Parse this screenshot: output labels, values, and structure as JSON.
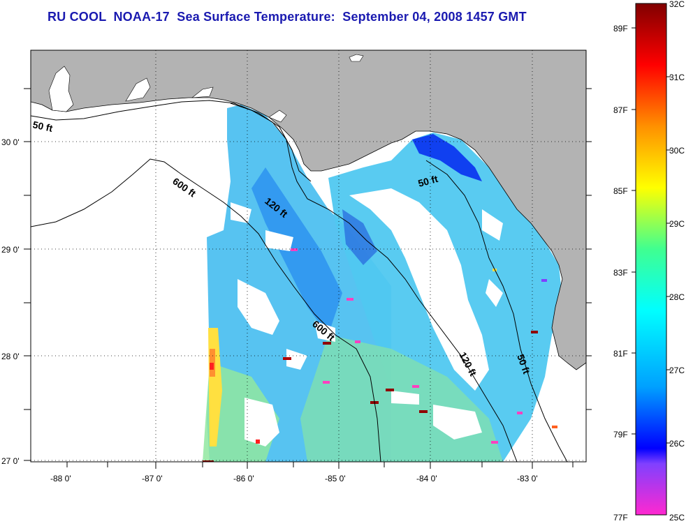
{
  "title": "RU COOL  NOAA-17  Sea Surface Temperature:  September 04, 2008 1457 GMT",
  "map": {
    "lon_range": [
      -88.3,
      -82.4
    ],
    "lat_range": [
      26.95,
      30.85
    ],
    "lon_ticks": [
      "-88 0'",
      "-87 0'",
      "-86 0'",
      "-85 0'",
      "-84 0'",
      "-83 0'"
    ],
    "lat_ticks": [
      "30 0'",
      "29 0'",
      "28 0'",
      "27 0'"
    ],
    "land_color": "#b3b3b3",
    "water_no_data_color": "#ffffff",
    "grid": true
  },
  "depth_contours": [
    {
      "label": "50 ft"
    },
    {
      "label": "600 ft"
    },
    {
      "label": "120 ft"
    },
    {
      "label": "50 ft"
    },
    {
      "label": "600 ft"
    },
    {
      "label": "120 ft"
    },
    {
      "label": "50 ft"
    }
  ],
  "colorbar": {
    "celsius_ticks": [
      "32C",
      "31C",
      "30C",
      "29C",
      "28C",
      "27C",
      "26C",
      "25C"
    ],
    "fahrenheit_ticks": [
      "89F",
      "87F",
      "85F",
      "83F",
      "81F",
      "79F",
      "77F"
    ],
    "colors": [
      "#ff28c8",
      "#8040ff",
      "#0000ff",
      "#00a0ff",
      "#00ffff",
      "#40ff90",
      "#ffff00",
      "#ff8000",
      "#ff0000",
      "#800000"
    ]
  }
}
